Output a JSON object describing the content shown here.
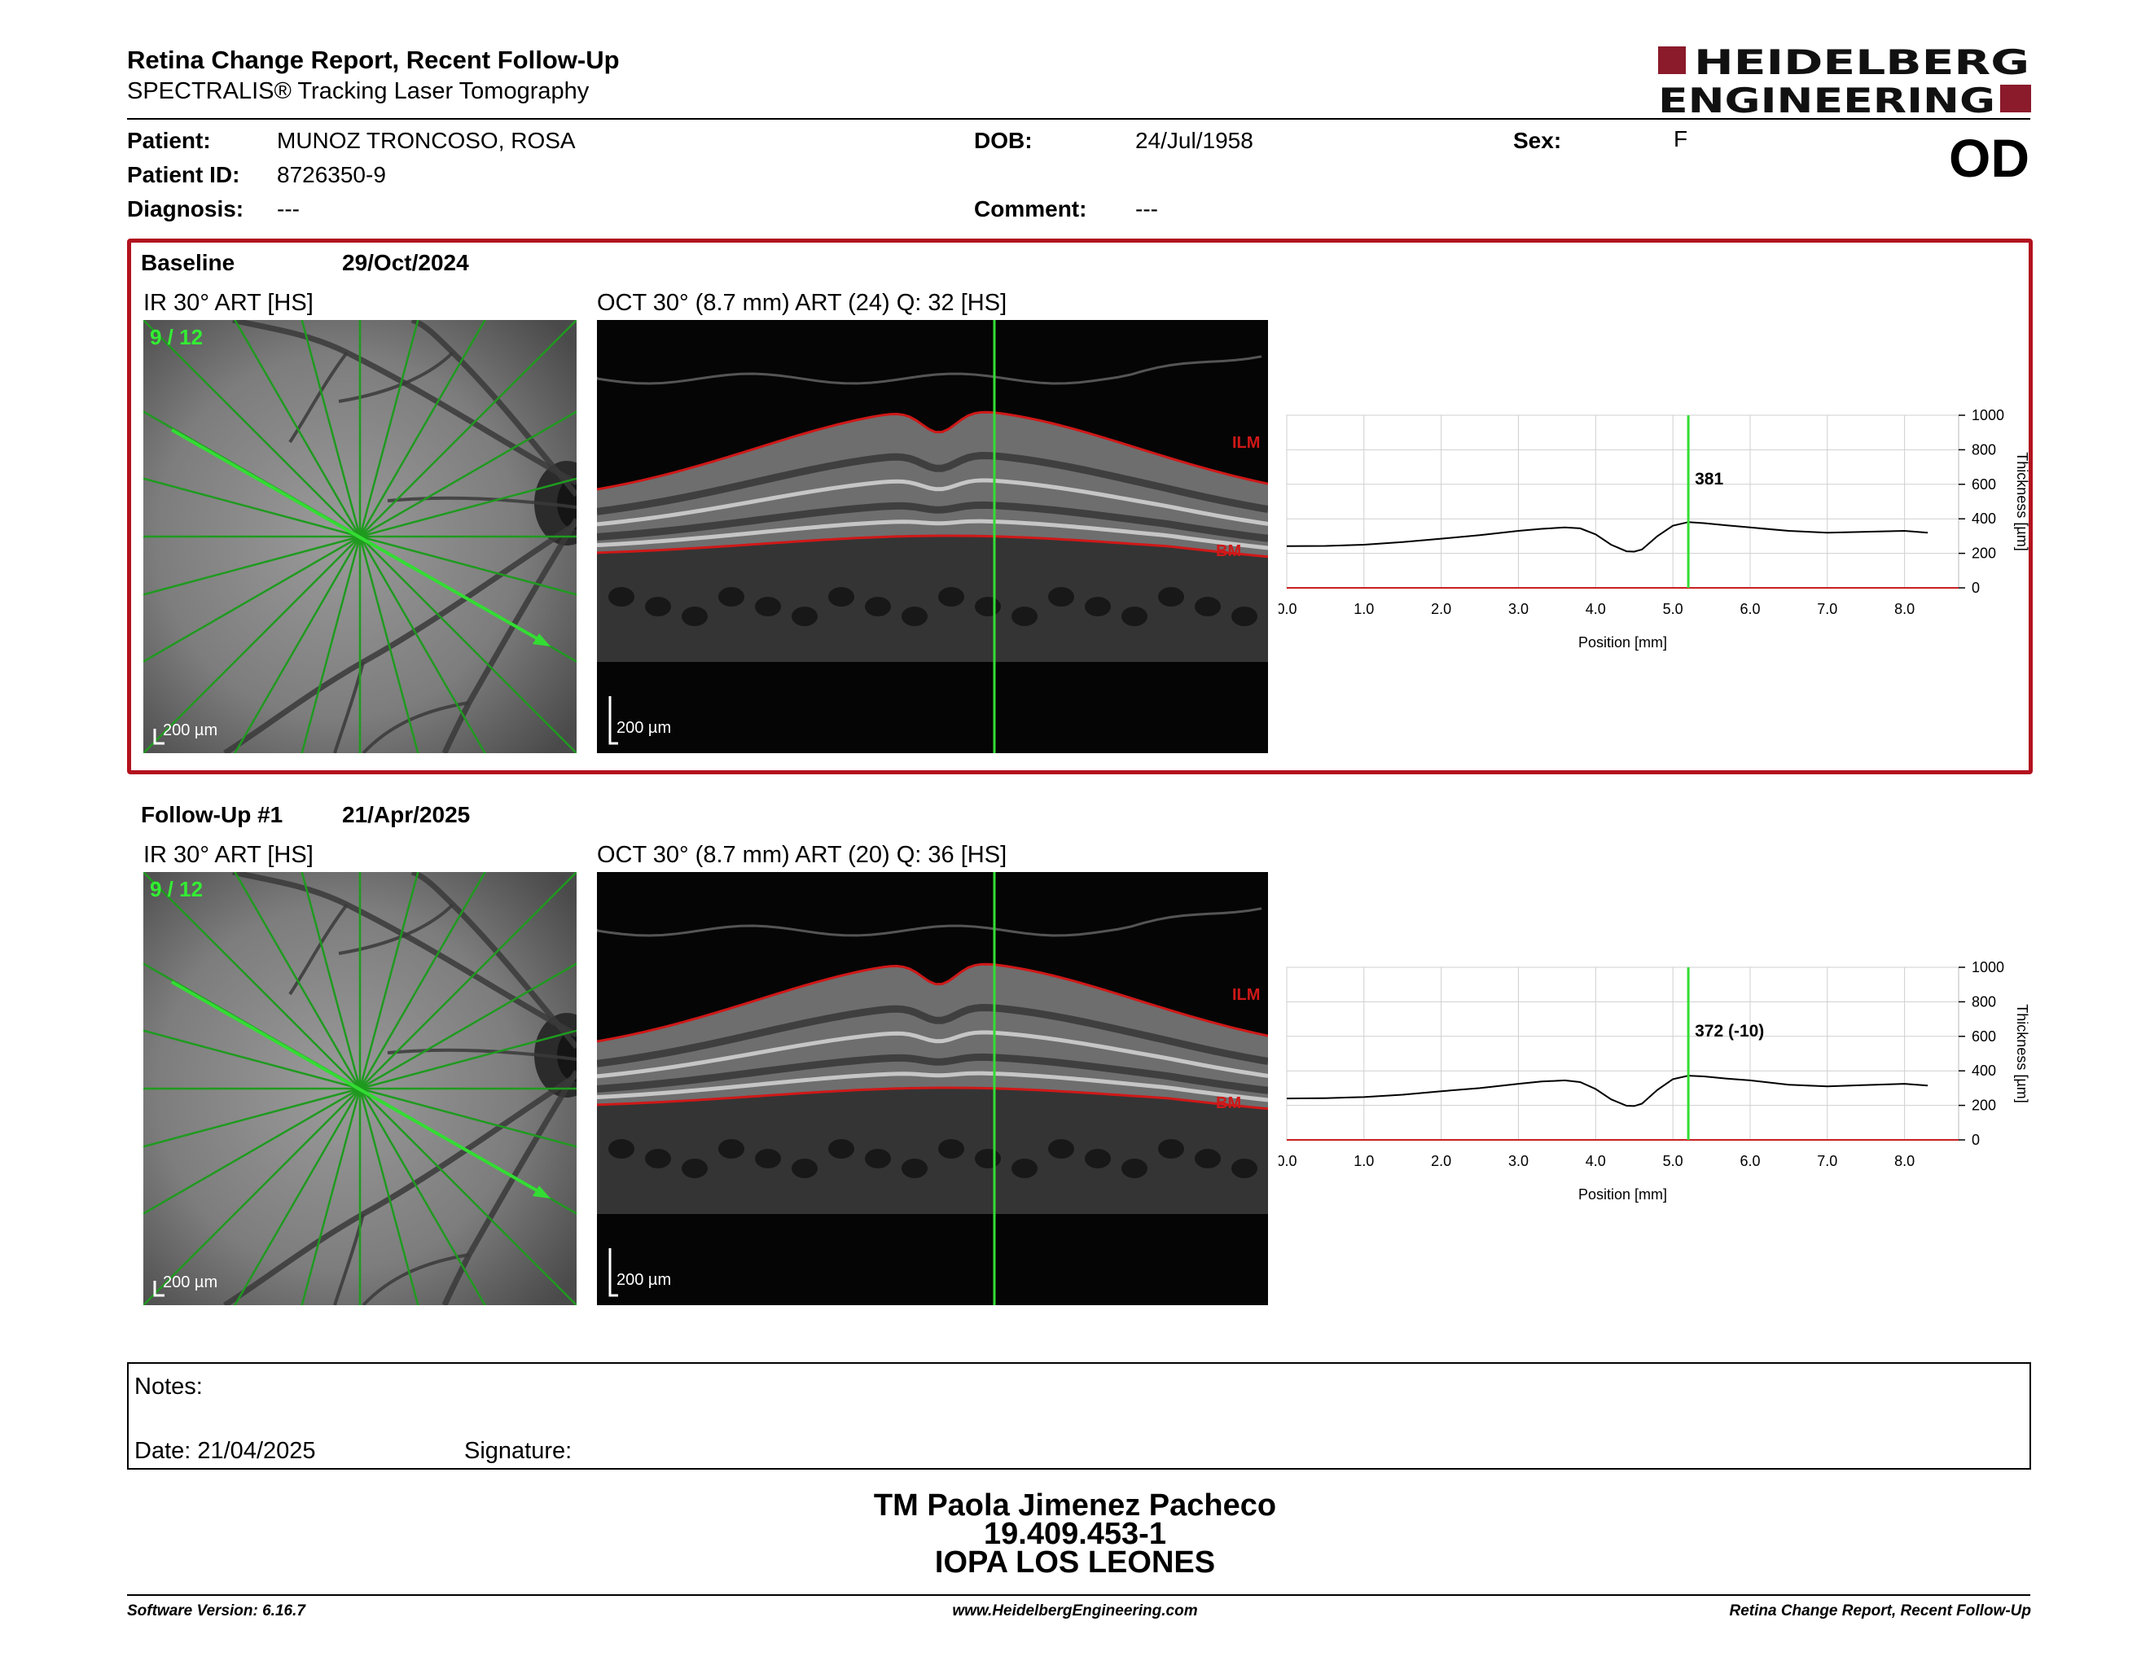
{
  "report": {
    "title": "Retina Change Report, Recent Follow-Up",
    "subtitle": "SPECTRALIS® Tracking Laser Tomography",
    "eye": "OD"
  },
  "logo": {
    "line1": "HEIDELBERG",
    "line2": "ENGINEERING",
    "color": "#8b1a2b"
  },
  "patient": {
    "name_label": "Patient:",
    "name": "MUNOZ TRONCOSO, ROSA",
    "id_label": "Patient ID:",
    "id": "8726350-9",
    "diagnosis_label": "Diagnosis:",
    "diagnosis": "---",
    "dob_label": "DOB:",
    "dob": "24/Jul/1958",
    "comment_label": "Comment:",
    "comment": "---",
    "sex_label": "Sex:",
    "sex": "F"
  },
  "baseline": {
    "label": "Baseline",
    "date": "29/Oct/2024",
    "ir_label": "IR 30° ART [HS]",
    "oct_label": "OCT 30° (8.7 mm) ART (24) Q: 32 [HS]",
    "scan_index": "9 / 12",
    "ir_scale": "200 µm",
    "oct_scale": "200 µm",
    "ilm": "ILM",
    "bm": "BM",
    "marker_value": "381"
  },
  "followup": {
    "label": "Follow-Up #1",
    "date": "21/Apr/2025",
    "ir_label": "IR 30° ART [HS]",
    "oct_label": "OCT 30° (8.7 mm) ART (20) Q: 36 [HS]",
    "scan_index": "9 / 12",
    "ir_scale": "200 µm",
    "oct_scale": "200 µm",
    "ilm": "ILM",
    "bm": "BM",
    "marker_value": "372 (-10)"
  },
  "chart_data": [
    {
      "type": "line",
      "title": "",
      "xlabel": "Position [mm]",
      "ylabel": "Thickness [µm]",
      "xlim": [
        0,
        8.7
      ],
      "ylim": [
        0,
        1000
      ],
      "x_ticks": [
        "0.0",
        "1.0",
        "2.0",
        "3.0",
        "4.0",
        "5.0",
        "6.0",
        "7.0",
        "8.0"
      ],
      "y_ticks": [
        "0",
        "200",
        "400",
        "600",
        "800",
        "1000"
      ],
      "grid": true,
      "marker_x": 5.2,
      "marker_label": "381",
      "series": [
        {
          "x": [
            0.0,
            0.5,
            1.0,
            1.5,
            2.0,
            2.5,
            3.0,
            3.3,
            3.6,
            3.8,
            4.0,
            4.2,
            4.4,
            4.5,
            4.6,
            4.8,
            5.0,
            5.2,
            5.4,
            5.7,
            6.0,
            6.5,
            7.0,
            7.5,
            8.0,
            8.3
          ],
          "values": [
            242,
            243,
            250,
            265,
            285,
            305,
            330,
            342,
            350,
            345,
            310,
            250,
            212,
            210,
            222,
            300,
            360,
            381,
            375,
            362,
            350,
            330,
            320,
            325,
            330,
            320
          ]
        }
      ]
    },
    {
      "type": "line",
      "title": "",
      "xlabel": "Position [mm]",
      "ylabel": "Thickness [µm]",
      "xlim": [
        0,
        8.7
      ],
      "ylim": [
        0,
        1000
      ],
      "x_ticks": [
        "0.0",
        "1.0",
        "2.0",
        "3.0",
        "4.0",
        "5.0",
        "6.0",
        "7.0",
        "8.0"
      ],
      "y_ticks": [
        "0",
        "200",
        "400",
        "600",
        "800",
        "1000"
      ],
      "grid": true,
      "marker_x": 5.2,
      "marker_label": "372 (-10)",
      "series": [
        {
          "x": [
            0.0,
            0.5,
            1.0,
            1.5,
            2.0,
            2.5,
            3.0,
            3.3,
            3.6,
            3.8,
            4.0,
            4.2,
            4.4,
            4.5,
            4.6,
            4.8,
            5.0,
            5.2,
            5.4,
            5.7,
            6.0,
            6.5,
            7.0,
            7.5,
            8.0,
            8.3
          ],
          "values": [
            240,
            242,
            248,
            262,
            282,
            300,
            325,
            338,
            345,
            335,
            295,
            235,
            198,
            196,
            210,
            290,
            352,
            372,
            368,
            355,
            345,
            320,
            310,
            318,
            325,
            315
          ]
        }
      ]
    }
  ],
  "notes": {
    "notes_label": "Notes:",
    "date_label": "Date: 21/04/2025",
    "signature_label": "Signature:"
  },
  "signatory": {
    "name": "TM Paola Jimenez Pacheco",
    "rut": "19.409.453-1",
    "institution": "IOPA LOS LEONES"
  },
  "footer": {
    "software": "Software Version: 6.16.7",
    "website": "www.HeidelbergEngineering.com",
    "report_name": "Retina Change Report, Recent Follow-Up"
  },
  "colors": {
    "accent_red": "#b2121e",
    "scan_green": "#2aa52a",
    "marker_green": "#33dd33",
    "layer_red": "#d01818"
  }
}
